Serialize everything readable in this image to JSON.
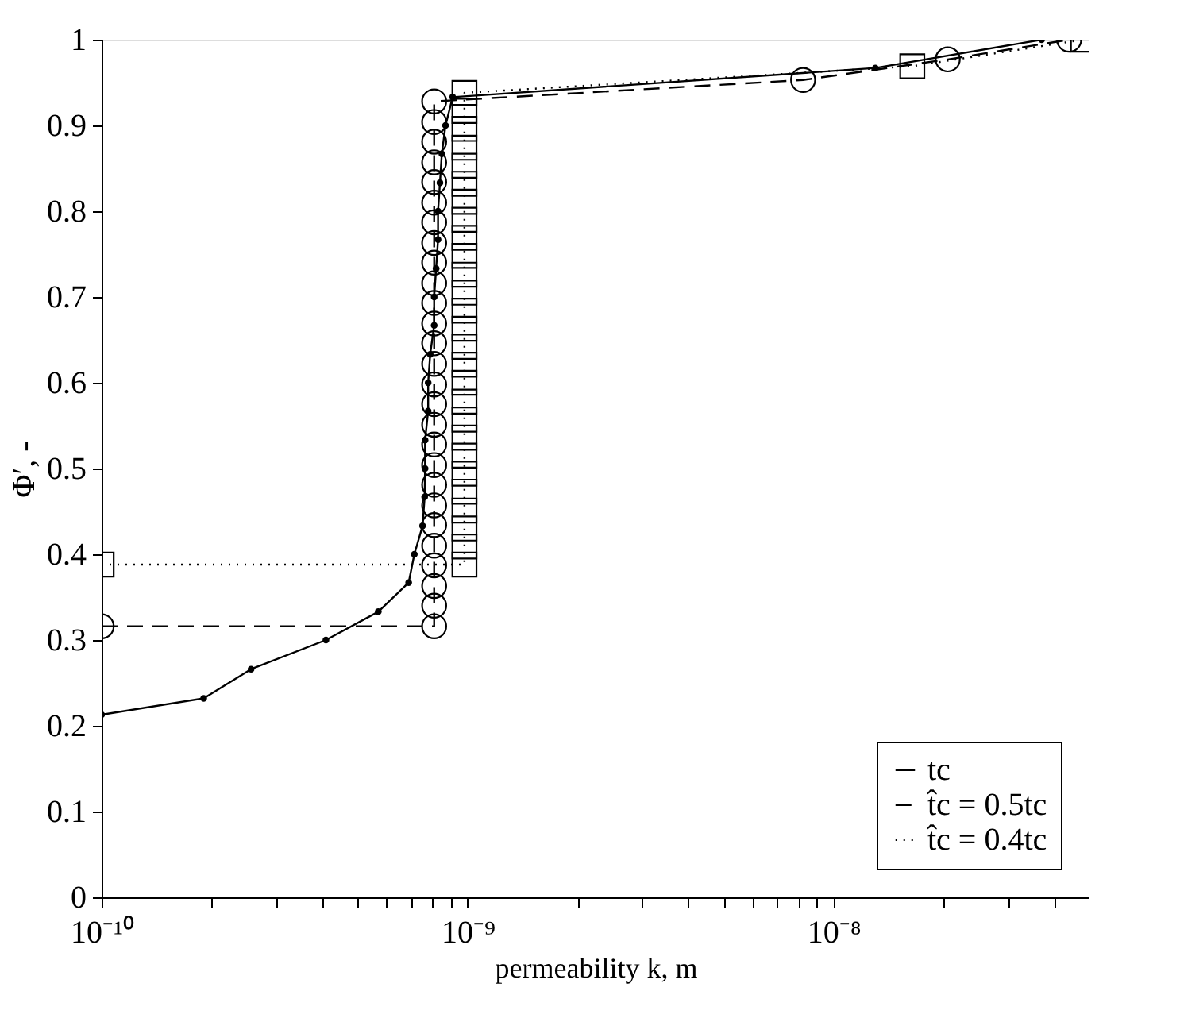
{
  "chart_data": {
    "type": "line",
    "xlabel": "permeability k, m",
    "ylabel": "Φ′, -",
    "log": "x",
    "grid": false,
    "legend": "bottom right",
    "xlim": [
      1e-10,
      5e-08
    ],
    "ylim": [
      0,
      1
    ],
    "xticks": [
      {
        "value": 1e-10,
        "label": "10⁻¹⁰"
      },
      {
        "value": 2e-10,
        "label": null
      },
      {
        "value": 3e-10,
        "label": null
      },
      {
        "value": 4e-10,
        "label": null
      },
      {
        "value": 5e-10,
        "label": null
      },
      {
        "value": 6e-10,
        "label": null
      },
      {
        "value": 7e-10,
        "label": null
      },
      {
        "value": 8e-10,
        "label": null
      },
      {
        "value": 9e-10,
        "label": null
      },
      {
        "value": 1e-09,
        "label": "10⁻⁹"
      },
      {
        "value": 2e-09,
        "label": null
      },
      {
        "value": 3e-09,
        "label": null
      },
      {
        "value": 4e-09,
        "label": null
      },
      {
        "value": 5e-09,
        "label": null
      },
      {
        "value": 6e-09,
        "label": null
      },
      {
        "value": 7e-09,
        "label": null
      },
      {
        "value": 8e-09,
        "label": null
      },
      {
        "value": 9e-09,
        "label": null
      },
      {
        "value": 1e-08,
        "label": "10⁻⁸"
      },
      {
        "value": 2e-08,
        "label": null
      },
      {
        "value": 3e-08,
        "label": null
      },
      {
        "value": 4e-08,
        "label": null
      }
    ],
    "yticks": [
      0,
      0.1,
      0.2,
      0.3,
      0.4,
      0.5,
      0.6,
      0.7,
      0.8,
      0.9,
      1
    ],
    "series": [
      {
        "name": "tc",
        "color": "#000000",
        "marker": "circle",
        "line_style": "solid",
        "x": [
          1e-10,
          1.9e-10,
          2.56e-10,
          4.1e-10,
          5.7e-10,
          6.9e-10,
          7.15e-10,
          7.53e-10,
          7.63e-10,
          7.65e-10,
          7.65e-10,
          7.8e-10,
          7.8e-10,
          7.9e-10,
          8.1e-10,
          8.1e-10,
          8.2e-10,
          8.3e-10,
          8.3e-10,
          8.4e-10,
          8.5e-10,
          8.7e-10,
          9.1e-10,
          1.3e-08,
          3.7e-08
        ],
        "values": [
          0.213,
          0.232,
          0.266,
          0.3,
          0.333,
          0.367,
          0.4,
          0.433,
          0.467,
          0.5,
          0.533,
          0.567,
          0.6,
          0.633,
          0.667,
          0.7,
          0.733,
          0.767,
          0.8,
          0.833,
          0.867,
          0.9,
          0.933,
          0.967,
          1.0
        ]
      },
      {
        "name": "t̂c = 0.5tc",
        "color": "#000000",
        "marker": "circle",
        "line_style": "dashed",
        "x": [
          1e-10,
          8.1e-10,
          8.1e-10,
          8.1e-10,
          8.1e-10,
          8.1e-10,
          8.1e-10,
          8.1e-10,
          8.1e-10,
          8.1e-10,
          8.1e-10,
          8.1e-10,
          8.1e-10,
          8.1e-10,
          8.1e-10,
          8.1e-10,
          8.1e-10,
          8.1e-10,
          8.1e-10,
          8.1e-10,
          8.1e-10,
          8.1e-10,
          8.1e-10,
          8.1e-10,
          8.1e-10,
          8.1e-10,
          8.1e-10,
          8.1e-10,
          8.25e-09,
          2.05e-08,
          4.4e-08
        ],
        "values": [
          0.316,
          0.316,
          0.34,
          0.363,
          0.387,
          0.41,
          0.434,
          0.457,
          0.481,
          0.504,
          0.528,
          0.551,
          0.575,
          0.598,
          0.622,
          0.646,
          0.669,
          0.693,
          0.716,
          0.74,
          0.763,
          0.787,
          0.81,
          0.834,
          0.857,
          0.881,
          0.904,
          0.928,
          0.953,
          0.977,
          1.0
        ]
      },
      {
        "name": "t̂c = 0.4tc",
        "color": "#000000",
        "marker": "square",
        "line_style": "dotted",
        "x": [
          1e-10,
          9.8e-10,
          9.8e-10,
          9.8e-10,
          9.8e-10,
          9.8e-10,
          9.8e-10,
          9.8e-10,
          9.8e-10,
          9.8e-10,
          9.8e-10,
          9.8e-10,
          9.8e-10,
          9.8e-10,
          9.8e-10,
          9.8e-10,
          9.8e-10,
          9.8e-10,
          9.8e-10,
          9.8e-10,
          9.8e-10,
          9.8e-10,
          9.8e-10,
          9.8e-10,
          9.8e-10,
          9.8e-10,
          9.8e-10,
          9.8e-10,
          1.64e-08,
          4.8e-08
        ],
        "values": [
          0.388,
          0.388,
          0.409,
          0.43,
          0.451,
          0.473,
          0.494,
          0.515,
          0.536,
          0.557,
          0.578,
          0.6,
          0.621,
          0.642,
          0.663,
          0.684,
          0.705,
          0.726,
          0.748,
          0.769,
          0.79,
          0.811,
          0.832,
          0.853,
          0.874,
          0.896,
          0.917,
          0.938,
          0.969,
          1.0
        ]
      }
    ]
  }
}
